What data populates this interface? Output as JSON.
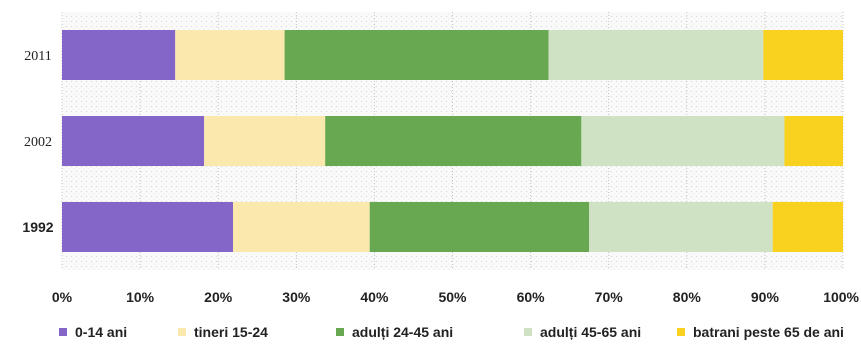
{
  "chart_data": {
    "type": "bar",
    "orientation": "horizontal",
    "stacked": true,
    "percent": true,
    "categories": [
      "2011",
      "2002",
      "1992"
    ],
    "category_bold": [
      false,
      false,
      true
    ],
    "series": [
      {
        "name": "0-14 ani",
        "color": "#8366c8",
        "values": [
          14.5,
          18.2,
          21.9
        ]
      },
      {
        "name": "tineri 15-24",
        "color": "#fbe8ac",
        "values": [
          14.0,
          15.5,
          17.5
        ]
      },
      {
        "name": "adulți 24-45 ani",
        "color": "#67a851",
        "values": [
          33.8,
          32.8,
          28.1
        ]
      },
      {
        "name": "adulți 45-65 ani",
        "color": "#cfe2c4",
        "values": [
          27.5,
          26.0,
          23.5
        ]
      },
      {
        "name": "batrani peste 65 de ani",
        "color": "#f9d21f",
        "values": [
          10.2,
          7.5,
          9.0
        ]
      }
    ],
    "xlim": [
      0,
      100
    ],
    "xticks": [
      "0%",
      "10%",
      "20%",
      "30%",
      "40%",
      "50%",
      "60%",
      "70%",
      "80%",
      "90%",
      "100%"
    ],
    "grid": true,
    "legend_position": "bottom"
  }
}
